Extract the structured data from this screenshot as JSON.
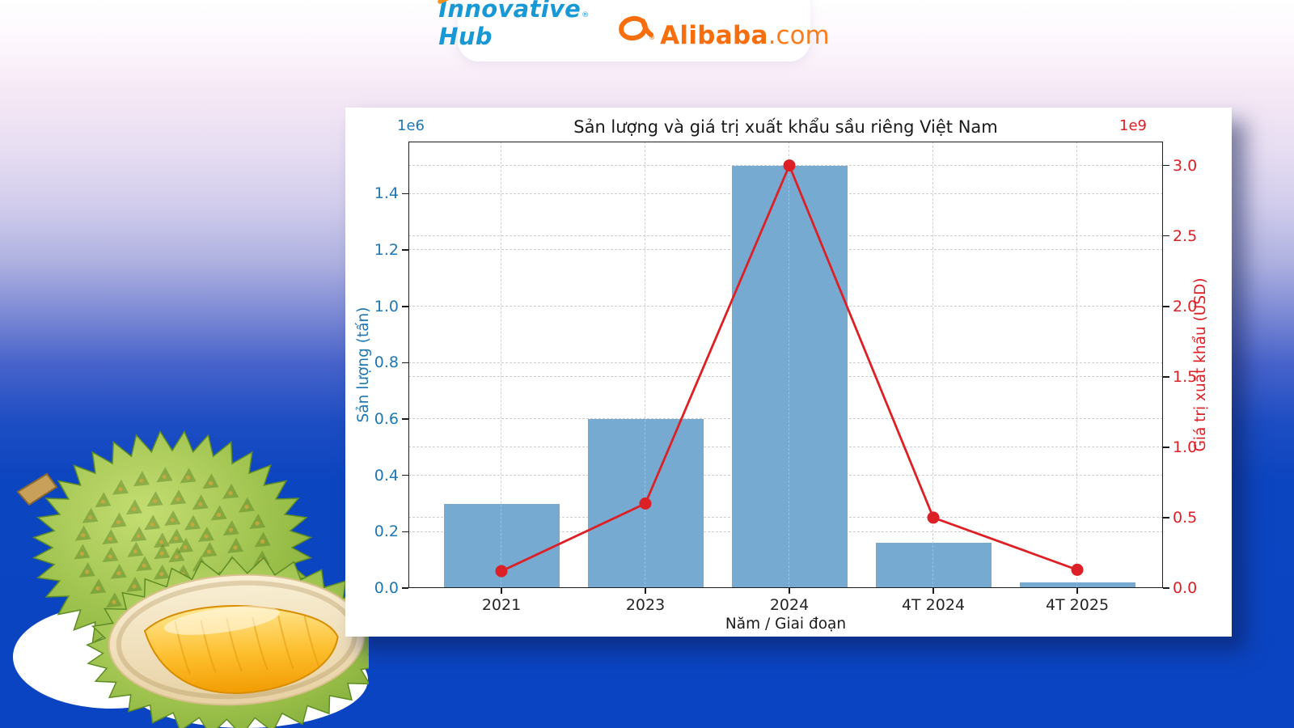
{
  "header": {
    "innovative_hub": "Innovative Hub",
    "innovative_reg": "®",
    "alibaba": "Alibaba",
    "alibaba_suffix": ".com",
    "alibaba_reg": "®"
  },
  "chart_data": {
    "type": "bar+line",
    "title": "Sản lượng và giá trị xuất khẩu sầu riêng Việt Nam",
    "xlabel": "Năm / Giai đoạn",
    "categories": [
      "2021",
      "2023",
      "2024",
      "4T 2024",
      "4T 2025"
    ],
    "series": [
      {
        "name": "Sản lượng (tấn)",
        "type": "bar",
        "axis": "left",
        "color": "#76aad0",
        "values": [
          300000,
          600000,
          1500000,
          160000,
          20000
        ]
      },
      {
        "name": "Giá trị xuất khẩu (USD)",
        "type": "line",
        "axis": "right",
        "color": "#dd2025",
        "values": [
          120000000,
          600000000,
          3000000000,
          500000000,
          130000000
        ]
      }
    ],
    "left_axis": {
      "label": "Sản lượng (tấn)",
      "offset_text": "1e6",
      "color": "#1f77b4",
      "unit": 1000000,
      "tick_labels": [
        "0.0",
        "0.2",
        "0.4",
        "0.6",
        "0.8",
        "1.0",
        "1.2",
        "1.4"
      ],
      "axis_max": 1.585
    },
    "right_axis": {
      "label": "Giá trị xuất khẩu (USD)",
      "offset_text": "1e9",
      "color": "#dd2025",
      "unit": 1000000000,
      "tick_labels": [
        "0.0",
        "0.5",
        "1.0",
        "1.5",
        "2.0",
        "2.5",
        "3.0"
      ],
      "axis_max": 3.17
    },
    "grid": true,
    "legend": false
  }
}
